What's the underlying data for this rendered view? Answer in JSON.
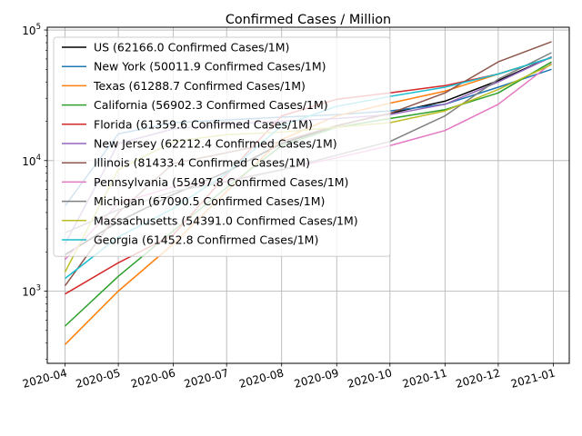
{
  "chart_data": {
    "type": "line",
    "title": "Confirmed Cases / Million",
    "xlabel": "",
    "ylabel": "",
    "x_scale": "time",
    "y_scale": "log",
    "xlim": [
      "2020-03-22",
      "2021-01-10"
    ],
    "ylim": [
      280,
      105000
    ],
    "grid": true,
    "legend_position": "top-left",
    "x_ticks": [
      "2020-04",
      "2020-05",
      "2020-06",
      "2020-07",
      "2020-08",
      "2020-09",
      "2020-10",
      "2020-11",
      "2020-12",
      "2021-01"
    ],
    "y_ticks": [
      {
        "value": 1000,
        "base": "10",
        "exp": "3"
      },
      {
        "value": 10000,
        "base": "10",
        "exp": "4"
      },
      {
        "value": 100000,
        "base": "10",
        "exp": "5"
      }
    ],
    "series": [
      {
        "name": "US (62166.0 Confirmed Cases/1M)",
        "color": "#000000",
        "points": [
          [
            "2020-04-01",
            1900
          ],
          [
            "2020-05-01",
            3400
          ],
          [
            "2020-06-01",
            5500
          ],
          [
            "2020-07-01",
            8200
          ],
          [
            "2020-08-01",
            13500
          ],
          [
            "2020-09-01",
            18500
          ],
          [
            "2020-10-01",
            23000
          ],
          [
            "2020-11-01",
            28500
          ],
          [
            "2020-12-01",
            41000
          ],
          [
            "2020-12-31",
            62166
          ]
        ]
      },
      {
        "name": "New York (50011.9 Confirmed Cases/1M)",
        "color": "#1f77b4",
        "points": [
          [
            "2020-04-01",
            4500
          ],
          [
            "2020-05-01",
            16000
          ],
          [
            "2020-06-01",
            19500
          ],
          [
            "2020-07-01",
            20500
          ],
          [
            "2020-08-01",
            21500
          ],
          [
            "2020-09-01",
            22500
          ],
          [
            "2020-10-01",
            24000
          ],
          [
            "2020-11-01",
            27000
          ],
          [
            "2020-12-01",
            36500
          ],
          [
            "2020-12-31",
            50012
          ]
        ]
      },
      {
        "name": "Texas (61288.7 Confirmed Cases/1M)",
        "color": "#ff7f0e",
        "points": [
          [
            "2020-04-01",
            390
          ],
          [
            "2020-05-01",
            1000
          ],
          [
            "2020-06-01",
            2300
          ],
          [
            "2020-07-01",
            5800
          ],
          [
            "2020-08-01",
            14500
          ],
          [
            "2020-09-01",
            22000
          ],
          [
            "2020-10-01",
            27500
          ],
          [
            "2020-11-01",
            34000
          ],
          [
            "2020-12-01",
            46000
          ],
          [
            "2020-12-31",
            61289
          ]
        ]
      },
      {
        "name": "California (56902.3 Confirmed Cases/1M)",
        "color": "#2ca02c",
        "points": [
          [
            "2020-04-01",
            540
          ],
          [
            "2020-05-01",
            1300
          ],
          [
            "2020-06-01",
            2900
          ],
          [
            "2020-07-01",
            6200
          ],
          [
            "2020-08-01",
            13000
          ],
          [
            "2020-09-01",
            18000
          ],
          [
            "2020-10-01",
            21000
          ],
          [
            "2020-11-01",
            24500
          ],
          [
            "2020-12-01",
            33000
          ],
          [
            "2020-12-31",
            56902
          ]
        ]
      },
      {
        "name": "Florida (61359.6 Confirmed Cases/1M)",
        "color": "#d62728",
        "points": [
          [
            "2020-04-01",
            950
          ],
          [
            "2020-05-01",
            1650
          ],
          [
            "2020-06-01",
            2700
          ],
          [
            "2020-07-01",
            7800
          ],
          [
            "2020-08-01",
            22000
          ],
          [
            "2020-09-01",
            29500
          ],
          [
            "2020-10-01",
            33000
          ],
          [
            "2020-11-01",
            37500
          ],
          [
            "2020-12-01",
            46000
          ],
          [
            "2020-12-31",
            61360
          ]
        ]
      },
      {
        "name": "New Jersey (62212.4 Confirmed Cases/1M)",
        "color": "#9467bd",
        "points": [
          [
            "2020-04-01",
            2300
          ],
          [
            "2020-05-01",
            13500
          ],
          [
            "2020-06-01",
            17500
          ],
          [
            "2020-07-01",
            19000
          ],
          [
            "2020-08-01",
            20000
          ],
          [
            "2020-09-01",
            21000
          ],
          [
            "2020-10-01",
            22500
          ],
          [
            "2020-11-01",
            27000
          ],
          [
            "2020-12-01",
            40000
          ],
          [
            "2020-12-31",
            62212
          ]
        ]
      },
      {
        "name": "Illinois (81433.4 Confirmed Cases/1M)",
        "color": "#8c564b",
        "points": [
          [
            "2020-04-01",
            1100
          ],
          [
            "2020-05-01",
            4000
          ],
          [
            "2020-06-01",
            9500
          ],
          [
            "2020-07-01",
            11500
          ],
          [
            "2020-08-01",
            14000
          ],
          [
            "2020-09-01",
            18500
          ],
          [
            "2020-10-01",
            23000
          ],
          [
            "2020-11-01",
            33000
          ],
          [
            "2020-12-01",
            57000
          ],
          [
            "2020-12-31",
            81433
          ]
        ]
      },
      {
        "name": "Pennsylvania (55497.8 Confirmed Cases/1M)",
        "color": "#e377c2",
        "points": [
          [
            "2020-04-01",
            1750
          ],
          [
            "2020-05-01",
            4700
          ],
          [
            "2020-06-01",
            6300
          ],
          [
            "2020-07-01",
            7000
          ],
          [
            "2020-08-01",
            8500
          ],
          [
            "2020-09-01",
            10500
          ],
          [
            "2020-10-01",
            13000
          ],
          [
            "2020-11-01",
            17000
          ],
          [
            "2020-12-01",
            27000
          ],
          [
            "2020-12-31",
            55498
          ]
        ]
      },
      {
        "name": "Michigan (67090.5 Confirmed Cases/1M)",
        "color": "#7f7f7f",
        "points": [
          [
            "2020-04-01",
            2800
          ],
          [
            "2020-05-01",
            4200
          ],
          [
            "2020-06-01",
            5800
          ],
          [
            "2020-07-01",
            6900
          ],
          [
            "2020-08-01",
            8500
          ],
          [
            "2020-09-01",
            11000
          ],
          [
            "2020-10-01",
            14000
          ],
          [
            "2020-11-01",
            22000
          ],
          [
            "2020-12-01",
            42000
          ],
          [
            "2020-12-31",
            67091
          ]
        ]
      },
      {
        "name": "Massachusetts (54391.0 Confirmed Cases/1M)",
        "color": "#bcbd22",
        "points": [
          [
            "2020-04-01",
            1400
          ],
          [
            "2020-05-01",
            8500
          ],
          [
            "2020-06-01",
            14000
          ],
          [
            "2020-07-01",
            15800
          ],
          [
            "2020-08-01",
            16500
          ],
          [
            "2020-09-01",
            18000
          ],
          [
            "2020-10-01",
            19500
          ],
          [
            "2020-11-01",
            24000
          ],
          [
            "2020-12-01",
            35000
          ],
          [
            "2020-12-31",
            54391
          ]
        ]
      },
      {
        "name": "Georgia (61452.8 Confirmed Cases/1M)",
        "color": "#17becf",
        "points": [
          [
            "2020-04-01",
            1250
          ],
          [
            "2020-05-01",
            2600
          ],
          [
            "2020-06-01",
            4300
          ],
          [
            "2020-07-01",
            8000
          ],
          [
            "2020-08-01",
            18500
          ],
          [
            "2020-09-01",
            26000
          ],
          [
            "2020-10-01",
            31000
          ],
          [
            "2020-11-01",
            36500
          ],
          [
            "2020-12-01",
            46000
          ],
          [
            "2020-12-31",
            61453
          ]
        ]
      }
    ]
  }
}
